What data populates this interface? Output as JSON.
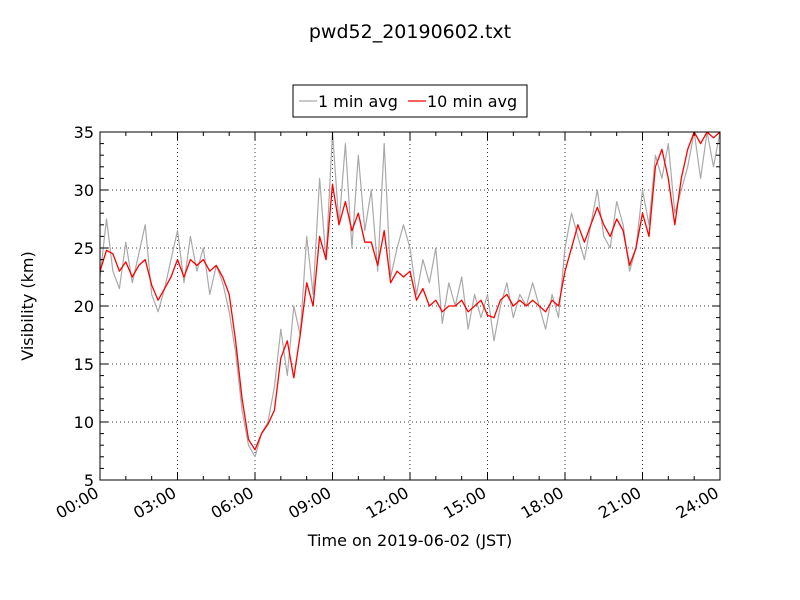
{
  "chart_data": {
    "type": "line",
    "title": "pwd52_20190602.txt",
    "xlabel": "Time on 2019-06-02 (JST)",
    "ylabel": "Visibility (km)",
    "x_unit": "hours",
    "xlim": [
      0,
      24
    ],
    "ylim": [
      5,
      35
    ],
    "x_ticks": [
      {
        "value": 0,
        "label": "00:00"
      },
      {
        "value": 3,
        "label": "03:00"
      },
      {
        "value": 6,
        "label": "06:00"
      },
      {
        "value": 9,
        "label": "09:00"
      },
      {
        "value": 12,
        "label": "12:00"
      },
      {
        "value": 15,
        "label": "15:00"
      },
      {
        "value": 18,
        "label": "18:00"
      },
      {
        "value": 21,
        "label": "21:00"
      },
      {
        "value": 24,
        "label": "24:00"
      }
    ],
    "y_ticks": [
      {
        "value": 5,
        "label": "5"
      },
      {
        "value": 10,
        "label": "10"
      },
      {
        "value": 15,
        "label": "15"
      },
      {
        "value": 20,
        "label": "20"
      },
      {
        "value": 25,
        "label": "25"
      },
      {
        "value": 30,
        "label": "30"
      },
      {
        "value": 35,
        "label": "35"
      }
    ],
    "grid": true,
    "legend_position": "top-center-above-plot",
    "series": [
      {
        "name": "1 min avg",
        "color": "#a9a9a9",
        "x": [
          0,
          0.25,
          0.5,
          0.75,
          1,
          1.25,
          1.5,
          1.75,
          2,
          2.25,
          2.5,
          2.75,
          3,
          3.25,
          3.5,
          3.75,
          4,
          4.25,
          4.5,
          4.75,
          5,
          5.25,
          5.5,
          5.75,
          6,
          6.25,
          6.5,
          6.75,
          7,
          7.25,
          7.5,
          7.75,
          8,
          8.25,
          8.5,
          8.75,
          9,
          9.25,
          9.5,
          9.75,
          10,
          10.25,
          10.5,
          10.75,
          11,
          11.25,
          11.5,
          11.75,
          12,
          12.25,
          12.5,
          12.75,
          13,
          13.25,
          13.5,
          13.75,
          14,
          14.25,
          14.5,
          14.75,
          15,
          15.25,
          15.5,
          15.75,
          16,
          16.25,
          16.5,
          16.75,
          17,
          17.25,
          17.5,
          17.75,
          18,
          18.25,
          18.5,
          18.75,
          19,
          19.25,
          19.5,
          19.75,
          20,
          20.25,
          20.5,
          20.75,
          21,
          21.25,
          21.5,
          21.75,
          22,
          22.25,
          22.5,
          22.75,
          23,
          23.25,
          23.5,
          23.75,
          24
        ],
        "y": [
          22.5,
          27.5,
          23,
          21.5,
          25.5,
          22,
          24.5,
          27,
          21,
          19.5,
          21.5,
          24,
          26.5,
          22,
          26,
          23,
          25,
          21,
          23.5,
          22,
          19.5,
          16,
          11,
          8,
          7,
          9,
          10,
          13,
          18,
          14,
          20,
          17.5,
          26,
          21,
          31,
          24,
          35,
          27,
          34,
          25,
          33,
          26.5,
          30,
          23,
          34,
          22.5,
          25,
          27,
          25,
          21,
          24,
          22,
          25,
          18.5,
          22,
          20,
          22.5,
          18,
          21,
          19,
          21,
          17,
          20,
          22,
          19,
          21,
          20,
          22,
          20,
          18,
          21,
          19,
          25,
          28,
          26,
          24,
          27,
          30,
          26,
          25,
          29,
          27,
          23,
          25,
          30,
          27,
          33,
          31,
          34,
          28,
          30,
          32,
          35,
          31,
          35,
          32,
          35
        ]
      },
      {
        "name": "10 min avg",
        "color": "#ff0000",
        "x": [
          0,
          0.25,
          0.5,
          0.75,
          1,
          1.25,
          1.5,
          1.75,
          2,
          2.25,
          2.5,
          2.75,
          3,
          3.25,
          3.5,
          3.75,
          4,
          4.25,
          4.5,
          4.75,
          5,
          5.25,
          5.5,
          5.75,
          6,
          6.25,
          6.5,
          6.75,
          7,
          7.25,
          7.5,
          7.75,
          8,
          8.25,
          8.5,
          8.75,
          9,
          9.25,
          9.5,
          9.75,
          10,
          10.25,
          10.5,
          10.75,
          11,
          11.25,
          11.5,
          11.75,
          12,
          12.25,
          12.5,
          12.75,
          13,
          13.25,
          13.5,
          13.75,
          14,
          14.25,
          14.5,
          14.75,
          15,
          15.25,
          15.5,
          15.75,
          16,
          16.25,
          16.5,
          16.75,
          17,
          17.25,
          17.5,
          17.75,
          18,
          18.25,
          18.5,
          18.75,
          19,
          19.25,
          19.5,
          19.75,
          20,
          20.25,
          20.5,
          20.75,
          21,
          21.25,
          21.5,
          21.75,
          22,
          22.25,
          22.5,
          22.75,
          23,
          23.25,
          23.5,
          23.75,
          24
        ],
        "y": [
          23,
          24.8,
          24.5,
          23,
          23.8,
          22.5,
          23.5,
          24,
          21.8,
          20.5,
          21.5,
          22.5,
          24,
          22.5,
          24,
          23.5,
          24,
          23,
          23.5,
          22.5,
          21,
          17,
          12,
          8.5,
          7.6,
          9,
          9.8,
          11,
          15.5,
          17,
          13.8,
          17.5,
          22,
          20,
          26,
          24,
          30.5,
          27,
          29,
          26.5,
          28,
          25.5,
          25.5,
          23.5,
          26.5,
          22,
          23,
          22.5,
          23,
          20.5,
          21.5,
          20,
          20.5,
          19.5,
          20,
          20,
          20.5,
          19.5,
          20,
          20.5,
          19.2,
          19,
          20.5,
          21,
          20,
          20.5,
          20,
          20.5,
          20,
          19.5,
          20.5,
          20,
          23,
          25,
          27,
          25.5,
          27,
          28.5,
          27,
          26,
          27.5,
          26.5,
          23.5,
          25,
          28,
          26,
          32,
          33.5,
          31,
          27,
          31,
          33.5,
          35,
          34,
          35,
          34.5,
          35
        ]
      }
    ]
  }
}
